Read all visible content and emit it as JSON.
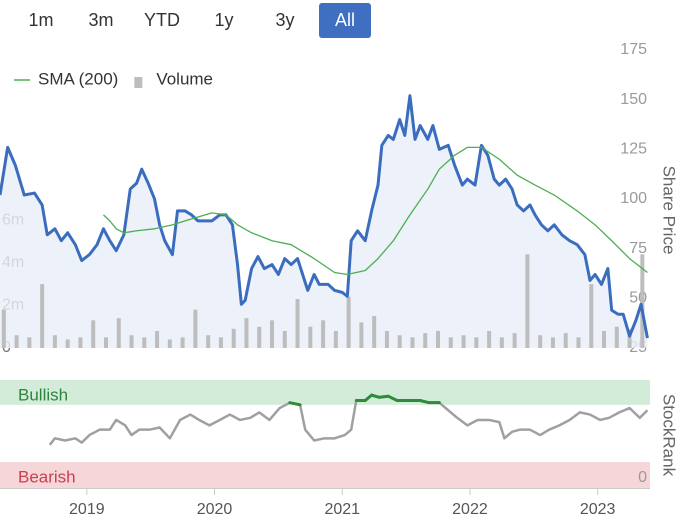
{
  "buttons": [
    "1m",
    "3m",
    "YTD",
    "1y",
    "3y",
    "All"
  ],
  "active_button": 5,
  "chart_data": [
    {
      "type": "line",
      "area": true,
      "legend": "top-left",
      "xlim": [
        2018.32,
        2023.41
      ],
      "ylim": [
        25,
        175
      ],
      "yticks": [
        25,
        50,
        75,
        100,
        125,
        150,
        175
      ],
      "y_label": "Share Price",
      "y2lim": [
        0,
        14000000
      ],
      "y2ticks": [
        0,
        {
          "value": 2000000,
          "label": "2m"
        },
        {
          "value": 4000000,
          "label": "4m"
        },
        {
          "value": 6000000,
          "label": "6m"
        }
      ],
      "series": [
        {
          "color": "#3b6dbf",
          "x": [
            2018.32,
            2018.38,
            2018.44,
            2018.51,
            2018.59,
            2018.65,
            2018.69,
            2018.75,
            2018.8,
            2018.85,
            2018.91,
            2018.96,
            2019.02,
            2019.08,
            2019.13,
            2019.18,
            2019.23,
            2019.29,
            2019.34,
            2019.39,
            2019.43,
            2019.48,
            2019.53,
            2019.57,
            2019.61,
            2019.67,
            2019.71,
            2019.77,
            2019.82,
            2019.87,
            2019.92,
            2019.98,
            2020.04,
            2020.09,
            2020.14,
            2020.18,
            2020.21,
            2020.24,
            2020.29,
            2020.34,
            2020.39,
            2020.45,
            2020.5,
            2020.55,
            2020.6,
            2020.65,
            2020.69,
            2020.73,
            2020.78,
            2020.82,
            2020.89,
            2020.94,
            2021.0,
            2021.04,
            2021.07,
            2021.12,
            2021.18,
            2021.23,
            2021.28,
            2021.31,
            2021.36,
            2021.4,
            2021.45,
            2021.49,
            2021.53,
            2021.57,
            2021.61,
            2021.67,
            2021.71,
            2021.76,
            2021.83,
            2021.88,
            2021.94,
            2021.98,
            2022.04,
            2022.09,
            2022.14,
            2022.19,
            2022.23,
            2022.28,
            2022.33,
            2022.37,
            2022.42,
            2022.47,
            2022.51,
            2022.56,
            2022.61,
            2022.66,
            2022.72,
            2022.78,
            2022.84,
            2022.9,
            2022.94,
            2022.98,
            2023.03,
            2023.08,
            2023.11,
            2023.16,
            2023.2,
            2023.25,
            2023.3,
            2023.34,
            2023.39
          ],
          "values": [
            102,
            126,
            117,
            102,
            103,
            97,
            82,
            85,
            79,
            83,
            77,
            69,
            72,
            77,
            85,
            79,
            74,
            82,
            105,
            108,
            115,
            108,
            100,
            87,
            79,
            72,
            94,
            94,
            92,
            89,
            89,
            89,
            92,
            92,
            87,
            67,
            47,
            49,
            65,
            71,
            65,
            67,
            62,
            70,
            67,
            70,
            62,
            54,
            62,
            57,
            57,
            54,
            53,
            51,
            79,
            84,
            79,
            94,
            107,
            127,
            132,
            130,
            140,
            132,
            152,
            130,
            137,
            130,
            137,
            125,
            127,
            117,
            107,
            110,
            107,
            127,
            122,
            110,
            107,
            110,
            105,
            97,
            94,
            97,
            92,
            87,
            84,
            87,
            82,
            79,
            77,
            72,
            59,
            62,
            57,
            65,
            44,
            42,
            42,
            31,
            39,
            47,
            30
          ]
        },
        {
          "name": "SMA (200)",
          "color": "#4caf50",
          "x": [
            2019.13,
            2019.18,
            2019.23,
            2019.29,
            2019.39,
            2019.53,
            2019.67,
            2019.82,
            2019.98,
            2020.09,
            2020.18,
            2020.29,
            2020.45,
            2020.6,
            2020.78,
            2020.94,
            2021.04,
            2021.18,
            2021.28,
            2021.4,
            2021.53,
            2021.67,
            2021.76,
            2021.88,
            2021.98,
            2022.09,
            2022.23,
            2022.37,
            2022.51,
            2022.66,
            2022.84,
            2022.98,
            2023.11,
            2023.25,
            2023.39
          ],
          "values": [
            92,
            89,
            85,
            83,
            84,
            85,
            87,
            90,
            93,
            92,
            87,
            83,
            79,
            77,
            70,
            63,
            62,
            64,
            70,
            79,
            92,
            105,
            115,
            122,
            126,
            126,
            120,
            112,
            107,
            102,
            94,
            87,
            79,
            70,
            63
          ]
        },
        {
          "name": "Volume",
          "type": "bar",
          "axis": "y2",
          "color": "#bdbdbd",
          "x": [
            2018.35,
            2018.45,
            2018.55,
            2018.65,
            2018.75,
            2018.85,
            2018.95,
            2019.05,
            2019.15,
            2019.25,
            2019.35,
            2019.45,
            2019.55,
            2019.65,
            2019.75,
            2019.85,
            2019.95,
            2020.05,
            2020.15,
            2020.25,
            2020.35,
            2020.45,
            2020.55,
            2020.65,
            2020.75,
            2020.85,
            2020.95,
            2021.05,
            2021.15,
            2021.25,
            2021.35,
            2021.45,
            2021.55,
            2021.65,
            2021.75,
            2021.85,
            2021.95,
            2022.05,
            2022.15,
            2022.25,
            2022.35,
            2022.45,
            2022.55,
            2022.65,
            2022.75,
            2022.85,
            2022.95,
            2023.05,
            2023.15,
            2023.25,
            2023.35
          ],
          "values": [
            1800000,
            600000,
            500000,
            3000000,
            600000,
            400000,
            500000,
            1300000,
            500000,
            1400000,
            600000,
            500000,
            800000,
            400000,
            500000,
            1800000,
            600000,
            500000,
            900000,
            1400000,
            1000000,
            1300000,
            800000,
            2300000,
            1000000,
            1300000,
            800000,
            2400000,
            1200000,
            1500000,
            800000,
            600000,
            500000,
            700000,
            800000,
            500000,
            600000,
            500000,
            800000,
            500000,
            700000,
            4400000,
            600000,
            500000,
            700000,
            500000,
            3000000,
            800000,
            1000000,
            900000,
            4400000
          ]
        }
      ]
    },
    {
      "type": "line",
      "xlim": [
        2018.32,
        2023.41
      ],
      "ylim": [
        0,
        100
      ],
      "yticks": [
        0
      ],
      "y_label": "StockRank",
      "xticks": [
        2019,
        2020,
        2021,
        2022,
        2023
      ],
      "bands": [
        {
          "label": "Bullish",
          "from": 77,
          "to": 100,
          "color": "#d3ecd9",
          "text_color": "#2e8540"
        },
        {
          "label": "Bearish",
          "from": 0,
          "to": 24,
          "color": "#f6d6d8",
          "text_color": "#c8414f"
        }
      ],
      "series": [
        {
          "color": "#a0a0a0",
          "highlight_color": "#2e8b3a",
          "x": [
            2018.71,
            2018.75,
            2018.83,
            2018.91,
            2018.96,
            2019.02,
            2019.1,
            2019.18,
            2019.23,
            2019.3,
            2019.35,
            2019.41,
            2019.49,
            2019.57,
            2019.65,
            2019.73,
            2019.81,
            2019.88,
            2019.96,
            2020.04,
            2020.12,
            2020.2,
            2020.28,
            2020.35,
            2020.43,
            2020.51,
            2020.59,
            2020.67,
            2020.71,
            2020.78,
            2020.86,
            2020.94,
            2021.02,
            2021.07,
            2021.11,
            2021.18,
            2021.23,
            2021.29,
            2021.36,
            2021.43,
            2021.53,
            2021.61,
            2021.68,
            2021.76,
            2021.83,
            2021.9,
            2021.98,
            2022.06,
            2022.15,
            2022.23,
            2022.27,
            2022.33,
            2022.39,
            2022.47,
            2022.55,
            2022.62,
            2022.7,
            2022.78,
            2022.86,
            2022.94,
            2023.02,
            2023.09,
            2023.17,
            2023.25,
            2023.33,
            2023.39
          ],
          "values": [
            40,
            46,
            44,
            46,
            42,
            49,
            54,
            54,
            63,
            58,
            49,
            54,
            54,
            56,
            46,
            63,
            68,
            63,
            58,
            63,
            68,
            63,
            65,
            70,
            63,
            74,
            79,
            77,
            54,
            44,
            46,
            46,
            49,
            54,
            81,
            81,
            86,
            84,
            85,
            81,
            81,
            81,
            79,
            79,
            72,
            65,
            58,
            63,
            63,
            61,
            46,
            52,
            54,
            54,
            49,
            54,
            58,
            63,
            70,
            68,
            63,
            65,
            70,
            74,
            65,
            72
          ]
        }
      ]
    }
  ]
}
